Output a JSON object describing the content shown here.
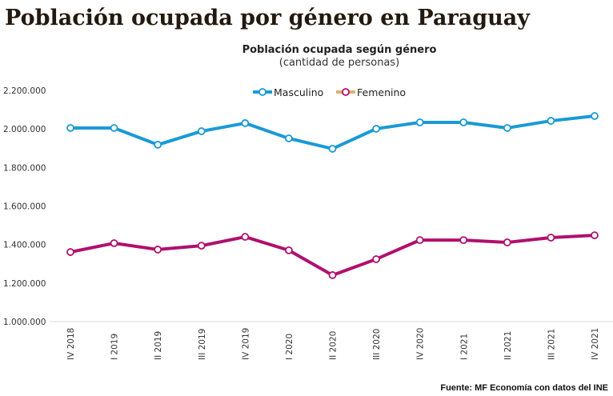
{
  "header": {
    "title": "Población ocupada por género en Paraguay"
  },
  "chart_data": {
    "type": "line",
    "title": "Población ocupada según género",
    "subtitle": "(cantidad de personas)",
    "categories": [
      "IV 2018",
      "I 2019",
      "II 2019",
      "III 2019",
      "IV 2019",
      "I 2020",
      "II 2020",
      "III 2020",
      "IV 2020",
      "I 2021",
      "II 2021",
      "III 2021",
      "IV 2021"
    ],
    "series": [
      {
        "name": "Masculino",
        "color": "#1a9ad6",
        "legend_line_color": "#1a9ad6",
        "values": [
          2005000,
          2005000,
          1918000,
          1988000,
          2030000,
          1951000,
          1897000,
          2001000,
          2034000,
          2034000,
          2005000,
          2042000,
          2067000
        ]
      },
      {
        "name": "Femenino",
        "color": "#b0106e",
        "legend_line_color": "#e0b070",
        "values": [
          1361000,
          1407000,
          1374000,
          1394000,
          1440000,
          1370000,
          1241000,
          1324000,
          1423000,
          1423000,
          1411000,
          1436000,
          1448000
        ]
      }
    ],
    "ylim": [
      1000000,
      2200000
    ],
    "yticks": [
      "1.000.000",
      "1.200.000",
      "1.400.000",
      "1.600.000",
      "1.800.000",
      "2.000.000",
      "2.200.000"
    ],
    "ytick_values": [
      1000000,
      1200000,
      1400000,
      1600000,
      1800000,
      2000000,
      2200000
    ],
    "grid": false,
    "legend": "top-center",
    "marker": "hollow-circle"
  },
  "footer": {
    "source": "Fuente: MF Economía con datos del INE"
  }
}
